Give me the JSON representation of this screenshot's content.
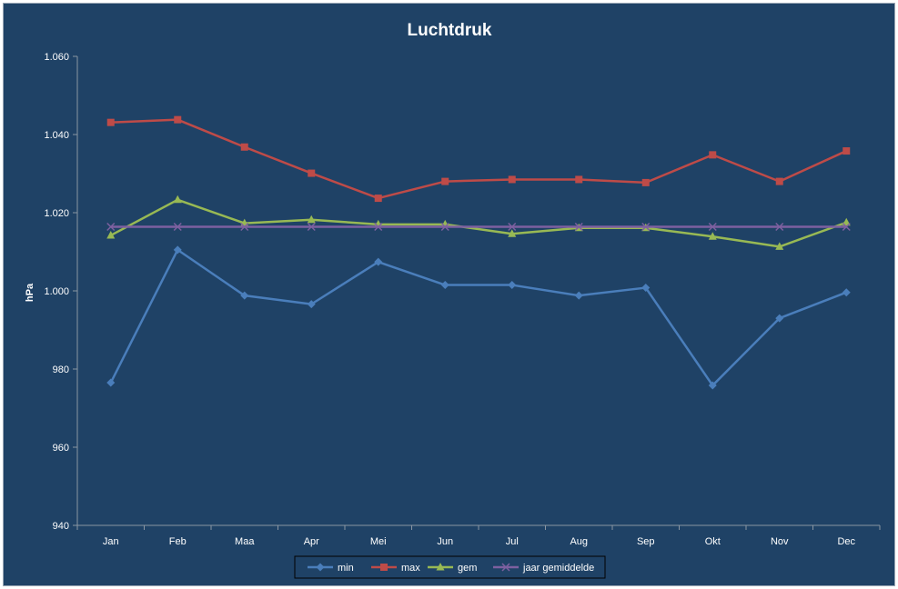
{
  "chart_data": {
    "type": "line",
    "title": "Luchtdruk",
    "xlabel": "",
    "ylabel": "hPa",
    "categories": [
      "Jan",
      "Feb",
      "Maa",
      "Apr",
      "Mei",
      "Jun",
      "Jul",
      "Aug",
      "Sep",
      "Okt",
      "Nov",
      "Dec"
    ],
    "y_ticks": [
      "940",
      "960",
      "980",
      "1.000",
      "1.020",
      "1.040",
      "1.060"
    ],
    "ylim": [
      940,
      1060
    ],
    "grid": false,
    "legend_position": "bottom",
    "series": [
      {
        "name": "min",
        "color": "#4a7ebb",
        "marker": "diamond",
        "values": [
          976.5,
          1010.5,
          998.8,
          996.6,
          1007.4,
          1001.5,
          1001.5,
          998.8,
          1000.8,
          975.8,
          993.0,
          999.6
        ]
      },
      {
        "name": "max",
        "color": "#be4b48",
        "marker": "square",
        "values": [
          1043.1,
          1043.8,
          1036.8,
          1030.1,
          1023.7,
          1028.0,
          1028.5,
          1028.5,
          1027.7,
          1034.8,
          1028.0,
          1035.8
        ]
      },
      {
        "name": "gem",
        "color": "#98b954",
        "marker": "triangle",
        "values": [
          1014.2,
          1023.3,
          1017.3,
          1018.2,
          1017.0,
          1017.0,
          1014.6,
          1016.1,
          1016.1,
          1013.9,
          1011.3,
          1017.5
        ]
      },
      {
        "name": "jaar gemiddelde",
        "color": "#7d60a0",
        "marker": "x",
        "values": [
          1016.4,
          1016.4,
          1016.4,
          1016.4,
          1016.4,
          1016.4,
          1016.4,
          1016.4,
          1016.4,
          1016.4,
          1016.4,
          1016.4
        ]
      }
    ]
  }
}
